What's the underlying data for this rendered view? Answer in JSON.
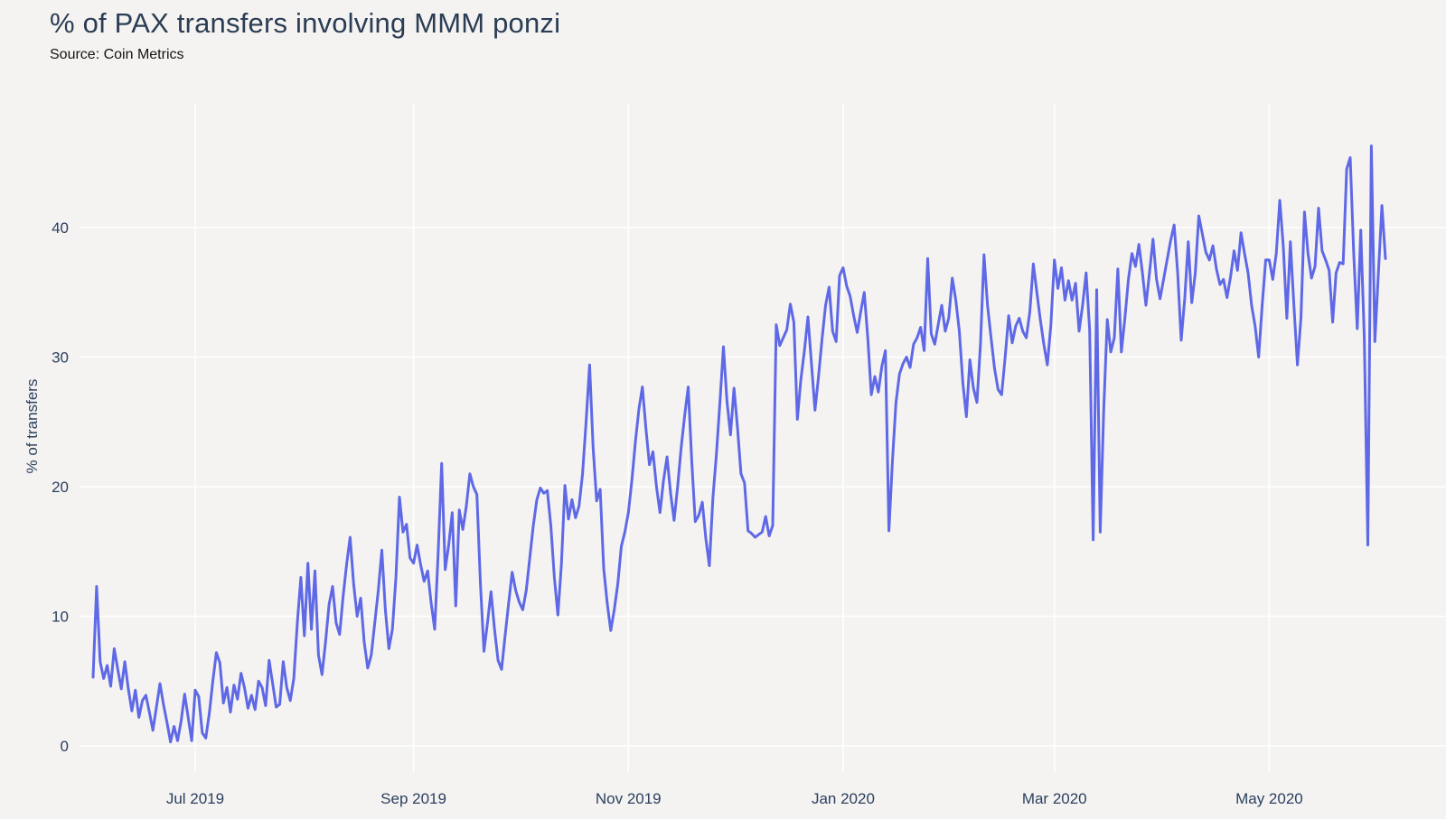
{
  "chart": {
    "title": "% of PAX transfers involving MMM ponzi",
    "source": "Source: Coin Metrics"
  },
  "chart_data": {
    "type": "line",
    "title": "% of PAX transfers involving MMM ponzi",
    "subtitle": "Source: Coin Metrics",
    "xlabel": "",
    "ylabel": "% of transfers",
    "legend": "none",
    "grid": "white gridlines on light-gray plot background",
    "x_axis": {
      "tick_labels": [
        "Jul 2019",
        "Sep 2019",
        "Nov 2019",
        "Jan 2020",
        "Mar 2020",
        "May 2020"
      ],
      "tick_day_indices": [
        29,
        91,
        152,
        213,
        273,
        334
      ],
      "range_dates": [
        "2019-06-02",
        "2020-06-03"
      ]
    },
    "y_axis": {
      "ticks": [
        0,
        10,
        20,
        30,
        40
      ],
      "range": [
        0,
        47.5
      ]
    },
    "series": [
      {
        "name": "% of PAX transfers involving MMM ponzi",
        "frequency": "daily",
        "start_date": "2019-06-02",
        "end_date": "2020-06-03",
        "values": [
          5.3,
          12.3,
          6.5,
          5.2,
          6.2,
          4.6,
          7.5,
          5.9,
          4.4,
          6.5,
          4.4,
          2.7,
          4.3,
          2.2,
          3.5,
          3.9,
          2.6,
          1.2,
          3.0,
          4.8,
          3.2,
          1.8,
          0.3,
          1.5,
          0.4,
          1.9,
          4.0,
          2.2,
          0.4,
          4.3,
          3.8,
          1.0,
          0.6,
          2.5,
          5.0,
          7.2,
          6.4,
          3.3,
          4.5,
          2.6,
          4.7,
          3.6,
          5.6,
          4.5,
          2.9,
          3.9,
          2.8,
          5.0,
          4.5,
          3.1,
          6.6,
          4.8,
          3.0,
          3.2,
          6.5,
          4.5,
          3.5,
          5.2,
          9.5,
          13.0,
          8.5,
          14.1,
          9.0,
          13.5,
          7.0,
          5.5,
          8.0,
          10.9,
          12.3,
          9.5,
          8.6,
          11.5,
          14.0,
          16.1,
          12.5,
          10.0,
          11.4,
          8.0,
          6.0,
          7.0,
          9.5,
          12.0,
          15.1,
          10.5,
          7.5,
          9.0,
          13.0,
          19.2,
          16.5,
          17.1,
          14.5,
          14.1,
          15.5,
          14.0,
          12.7,
          13.5,
          11.0,
          9.0,
          15.0,
          21.8,
          13.6,
          15.5,
          18.0,
          10.8,
          18.2,
          16.7,
          18.5,
          21.0,
          20.0,
          19.4,
          12.5,
          7.3,
          9.5,
          11.9,
          9.0,
          6.6,
          5.9,
          8.5,
          11.0,
          13.4,
          12.0,
          11.1,
          10.5,
          12.0,
          14.5,
          17.0,
          19.0,
          19.9,
          19.5,
          19.7,
          17.0,
          13.0,
          10.1,
          14.0,
          20.1,
          17.5,
          19.0,
          17.6,
          18.5,
          21.0,
          25.0,
          29.4,
          23.0,
          18.9,
          19.8,
          13.7,
          11.0,
          8.9,
          10.5,
          12.5,
          15.4,
          16.5,
          18.0,
          20.5,
          23.5,
          26.0,
          27.7,
          24.5,
          21.7,
          22.7,
          20.0,
          18.0,
          20.5,
          22.3,
          19.5,
          17.4,
          20.0,
          23.0,
          25.5,
          27.7,
          22.0,
          17.3,
          17.8,
          18.8,
          16.0,
          13.9,
          19.1,
          22.5,
          26.5,
          30.8,
          26.6,
          24.0,
          27.6,
          24.5,
          21.0,
          20.3,
          16.6,
          16.4,
          16.1,
          16.3,
          16.5,
          17.7,
          16.2,
          17.0,
          32.5,
          30.9,
          31.5,
          32.1,
          34.1,
          32.7,
          25.2,
          28.3,
          30.5,
          33.1,
          29.5,
          25.9,
          28.5,
          31.4,
          34.0,
          35.4,
          32.0,
          31.2,
          36.3,
          36.9,
          35.5,
          34.7,
          33.2,
          31.9,
          33.5,
          35.0,
          31.5,
          27.1,
          28.5,
          27.3,
          29.3,
          30.5,
          16.6,
          22.0,
          26.5,
          28.7,
          29.5,
          30.0,
          29.2,
          31.0,
          31.5,
          32.3,
          30.5,
          37.6,
          31.8,
          31.0,
          32.5,
          34.0,
          32.0,
          33.0,
          36.1,
          34.4,
          32.0,
          28.0,
          25.4,
          29.8,
          27.6,
          26.5,
          31.0,
          37.9,
          34.0,
          31.5,
          29.1,
          27.5,
          27.1,
          30.0,
          33.2,
          31.1,
          32.4,
          33.0,
          32.0,
          31.5,
          33.5,
          37.2,
          35.0,
          32.9,
          31.0,
          29.4,
          32.5,
          37.5,
          35.3,
          36.9,
          34.4,
          35.9,
          34.4,
          35.7,
          32.0,
          34.0,
          36.5,
          32.1,
          15.9,
          35.2,
          16.5,
          26.0,
          32.9,
          30.4,
          31.5,
          36.8,
          30.4,
          33.0,
          36.0,
          38.0,
          37.0,
          38.7,
          36.5,
          34.0,
          36.5,
          39.1,
          36.0,
          34.5,
          36.0,
          37.5,
          39.0,
          40.2,
          36.5,
          31.3,
          34.5,
          38.9,
          34.2,
          36.5,
          40.9,
          39.5,
          38.1,
          37.5,
          38.6,
          36.8,
          35.6,
          36.0,
          34.6,
          36.2,
          38.2,
          36.7,
          39.6,
          38.0,
          36.5,
          34.0,
          32.4,
          30.0,
          34.0,
          37.5,
          37.5,
          36.0,
          38.0,
          42.1,
          38.5,
          33.0,
          38.9,
          34.0,
          29.4,
          33.0,
          41.2,
          38.0,
          36.1,
          37.0,
          41.5,
          38.2,
          37.5,
          36.7,
          32.7,
          36.5,
          37.3,
          37.2,
          44.5,
          45.4,
          38.0,
          32.2,
          39.8,
          31.5,
          15.5,
          46.3,
          31.2,
          36.5,
          41.7,
          37.6
        ]
      }
    ],
    "colors": {
      "line": "#5f69e6",
      "background": "#f4f3f1",
      "grid": "#ffffff",
      "title_text": "#2b3d54",
      "tick_text": "#2a3f5f",
      "source_text": "#141414"
    }
  }
}
